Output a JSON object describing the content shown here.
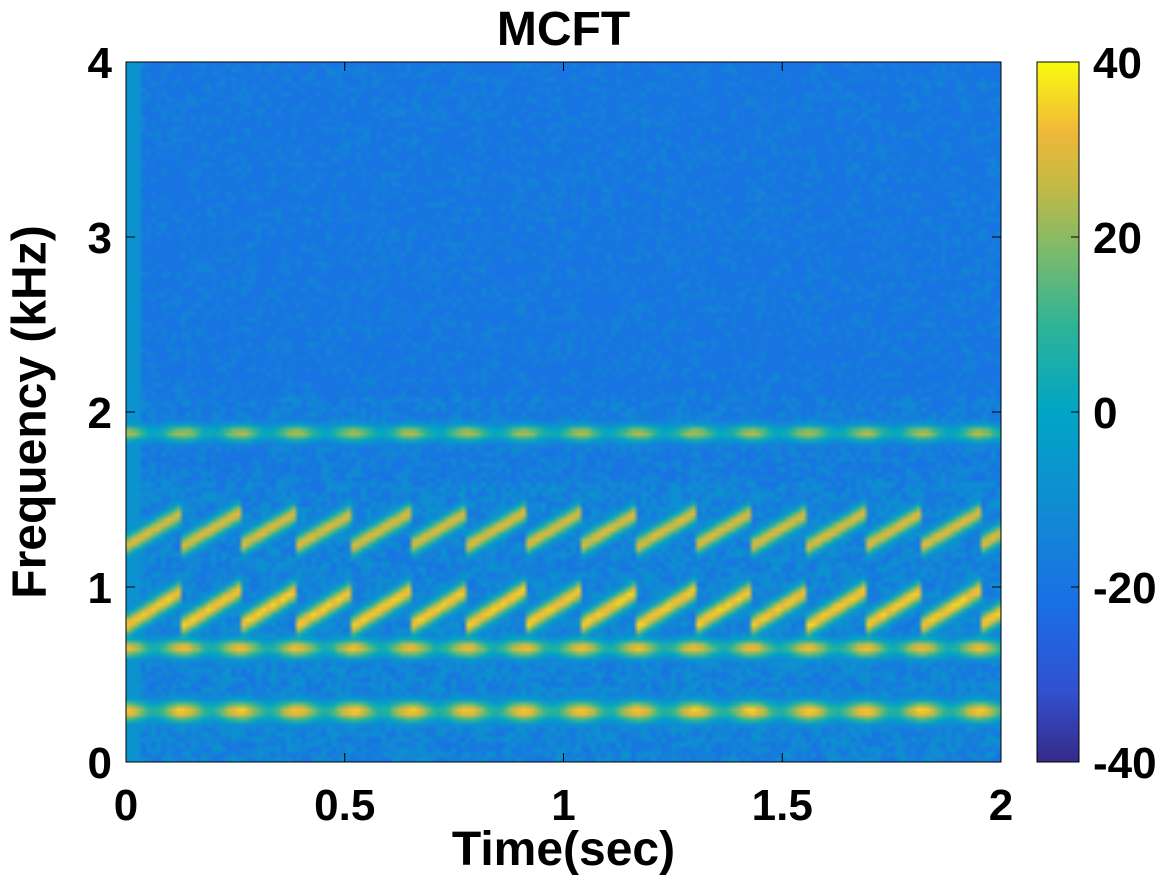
{
  "chart_data": {
    "type": "heatmap",
    "title": "MCFT",
    "xlabel": "Time(sec)",
    "ylabel": "Frequency (kHz)",
    "xlim": [
      0,
      2
    ],
    "ylim": [
      0,
      4
    ],
    "x_ticks": [
      {
        "value": 0,
        "label": "0"
      },
      {
        "value": 0.5,
        "label": "0.5"
      },
      {
        "value": 1,
        "label": "1"
      },
      {
        "value": 1.5,
        "label": "1.5"
      },
      {
        "value": 2,
        "label": "2"
      }
    ],
    "y_ticks": [
      {
        "value": 0,
        "label": "0"
      },
      {
        "value": 1,
        "label": "1"
      },
      {
        "value": 2,
        "label": "2"
      },
      {
        "value": 3,
        "label": "3"
      },
      {
        "value": 4,
        "label": "4"
      }
    ],
    "colorbar": {
      "colormap": "parula",
      "clim": [
        -40,
        40
      ],
      "ticks": [
        {
          "value": -40,
          "label": "-40"
        },
        {
          "value": -20,
          "label": "-20"
        },
        {
          "value": 0,
          "label": "0"
        },
        {
          "value": 20,
          "label": "20"
        },
        {
          "value": 40,
          "label": "40"
        }
      ]
    },
    "background_level_db": -20,
    "bands": [
      {
        "center_khz": 0.29,
        "width_khz": 0.09,
        "level_db": 36,
        "modulation": "pulsed"
      },
      {
        "center_khz": 0.65,
        "width_khz": 0.08,
        "level_db": 33,
        "modulation": "pulsed"
      },
      {
        "center_khz": 0.88,
        "width_khz": 0.17,
        "level_db": 35,
        "modulation": "sawtooth"
      },
      {
        "center_khz": 1.33,
        "width_khz": 0.16,
        "level_db": 30,
        "modulation": "sawtooth"
      },
      {
        "center_khz": 1.88,
        "width_khz": 0.07,
        "level_db": 25,
        "modulation": "pulsed"
      }
    ]
  }
}
